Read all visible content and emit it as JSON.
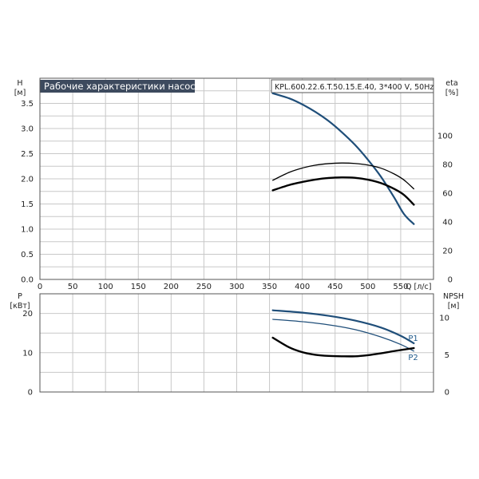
{
  "chart_data": [
    {
      "type": "line",
      "title": "Рабочие характеристики насоса",
      "model": "KPL.600.22.6.T.50.15.E.40, 3*400 V, 50Hz",
      "xlabel": "Q [л/с]",
      "ylabel": "H",
      "ylabel_unit": "[м]",
      "ylabel_right": "eta",
      "ylabel_right_unit": "[%]",
      "xlim": [
        0,
        600
      ],
      "ylim": [
        0,
        4
      ],
      "ylim_right": [
        0,
        140
      ],
      "x_ticks": [
        "0",
        "50",
        "100",
        "150",
        "200",
        "250",
        "300",
        "350",
        "400",
        "450",
        "500",
        "550"
      ],
      "y_ticks": [
        "0.0",
        "0.5",
        "1.0",
        "1.5",
        "2.0",
        "2.5",
        "3.0",
        "3.5"
      ],
      "y_right_ticks": [
        "0",
        "20",
        "40",
        "60",
        "80",
        "100"
      ],
      "grid": true,
      "series": [
        {
          "axis": "left",
          "color": "#1f4e79",
          "width": 2.2,
          "x": [
            355,
            380,
            400,
            420,
            440,
            460,
            480,
            500,
            520,
            540,
            555,
            570
          ],
          "y": [
            3.7,
            3.6,
            3.48,
            3.33,
            3.15,
            2.93,
            2.68,
            2.38,
            2.04,
            1.63,
            1.3,
            1.1
          ]
        },
        {
          "axis": "right",
          "color": "#000000",
          "width": 1.3,
          "x": [
            355,
            380,
            400,
            420,
            440,
            460,
            480,
            500,
            520,
            540,
            555,
            570
          ],
          "y": [
            69,
            74.5,
            77.5,
            79.5,
            80.6,
            81,
            80.7,
            79.6,
            77.4,
            73.4,
            69.2,
            63
          ]
        },
        {
          "axis": "right",
          "color": "#000000",
          "width": 2.4,
          "x": [
            355,
            380,
            400,
            420,
            440,
            460,
            480,
            500,
            520,
            540,
            555,
            570
          ],
          "y": [
            62,
            65.7,
            67.8,
            69.5,
            70.6,
            71,
            70.7,
            69.4,
            67,
            63,
            58.8,
            52
          ]
        }
      ]
    },
    {
      "type": "line",
      "ylabel": "P",
      "ylabel_unit": "[кВт]",
      "ylabel_right": "NPSH",
      "ylabel_right_unit": "[м]",
      "xlim": [
        0,
        600
      ],
      "ylim": [
        0,
        25
      ],
      "ylim_right": [
        0,
        13.2
      ],
      "y_ticks": [
        "0",
        "10",
        "20"
      ],
      "y_right_ticks": [
        "0",
        "5",
        "10"
      ],
      "grid": true,
      "series": [
        {
          "name": "P1",
          "axis": "left",
          "color": "#1f4e79",
          "width": 2.2,
          "x": [
            355,
            400,
            440,
            480,
            520,
            550,
            570
          ],
          "y": [
            20.8,
            20.2,
            19.4,
            18.2,
            16.4,
            14.3,
            12.4
          ]
        },
        {
          "name": "P2",
          "axis": "left",
          "color": "#1f4e79",
          "width": 1.2,
          "x": [
            355,
            400,
            440,
            480,
            520,
            550,
            570
          ],
          "y": [
            18.5,
            17.9,
            17.1,
            15.9,
            14.0,
            12.1,
            10.4
          ]
        },
        {
          "axis": "right",
          "color": "#000000",
          "width": 2.4,
          "x": [
            355,
            380,
            400,
            420,
            440,
            460,
            480,
            500,
            520,
            540,
            570
          ],
          "y": [
            7.3,
            6.0,
            5.35,
            5.0,
            4.85,
            4.8,
            4.8,
            4.95,
            5.2,
            5.5,
            5.9
          ]
        }
      ]
    }
  ]
}
